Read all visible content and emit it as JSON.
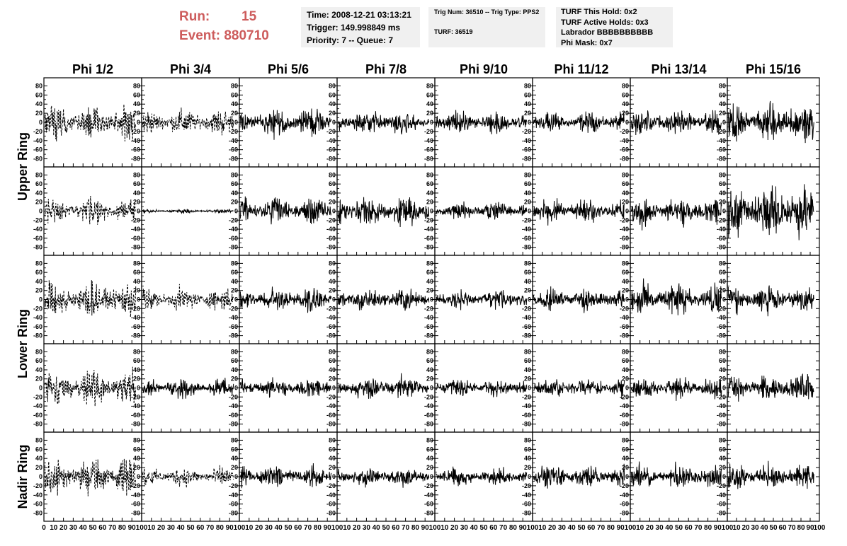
{
  "run_info": {
    "run_label": "Run:",
    "run_value": "15",
    "event_label": "Event:",
    "event_value": "880710"
  },
  "time_box": {
    "time": "Time: 2008-12-21 03:13:21",
    "trigger": "Trigger: 149.998849 ms",
    "priority": "Priority: 7 -- Queue: 7"
  },
  "trig_box": {
    "trig": "Trig Num: 36510 -- Trig Type: PPS2",
    "turf": "TURF: 36519"
  },
  "turf_box": {
    "hold": "TURF This Hold: 0x2",
    "active": "TURF Active Holds: 0x3",
    "labrador": "Labrador BBBBBBBBBB",
    "phimask": "Phi Mask: 0x7"
  },
  "colors": {
    "run_text": "#cd5c5c",
    "info_box_bg": "#f0f0f0",
    "trace": "#000000"
  },
  "chart_data": {
    "type": "line",
    "columns": [
      "Phi 1/2",
      "Phi 3/4",
      "Phi 5/6",
      "Phi 7/8",
      "Phi 9/10",
      "Phi 11/12",
      "Phi 13/14",
      "Phi 15/16"
    ],
    "row_labels": [
      {
        "text": "Upper Ring",
        "rows": [
          0,
          1
        ]
      },
      {
        "text": "Lower Ring",
        "rows": [
          2,
          3
        ]
      },
      {
        "text": "Nadir Ring",
        "rows": [
          4
        ]
      }
    ],
    "ylim": [
      -90,
      90
    ],
    "y_ticks": [
      -80,
      -60,
      -40,
      -20,
      0,
      20,
      40,
      60,
      80
    ],
    "xlim": [
      0,
      100
    ],
    "x_ticks": [
      0,
      10,
      20,
      30,
      40,
      50,
      60,
      70,
      80,
      90,
      100
    ],
    "x_tick_labels": [
      "0",
      "10",
      "20",
      "30",
      "40",
      "50",
      "60",
      "70",
      "80",
      "90",
      "100"
    ],
    "traces": [
      [
        {
          "style": "dashed",
          "amp": 28
        },
        {
          "style": "dashed",
          "amp": 20
        },
        {
          "style": "solid",
          "amp": 22
        },
        {
          "style": "solid",
          "amp": 18
        },
        {
          "style": "solid",
          "amp": 18
        },
        {
          "style": "solid",
          "amp": 16
        },
        {
          "style": "solid",
          "amp": 20
        },
        {
          "style": "solid",
          "amp": 32
        }
      ],
      [
        {
          "style": "dashed",
          "amp": 20
        },
        {
          "style": "solid",
          "amp": 3
        },
        {
          "style": "solid",
          "amp": 22
        },
        {
          "style": "solid",
          "amp": 25
        },
        {
          "style": "solid",
          "amp": 15
        },
        {
          "style": "solid",
          "amp": 20
        },
        {
          "style": "solid",
          "amp": 22
        },
        {
          "style": "solid",
          "amp": 40
        }
      ],
      [
        {
          "style": "dashed",
          "amp": 28
        },
        {
          "style": "dashed",
          "amp": 18
        },
        {
          "style": "solid",
          "amp": 18
        },
        {
          "style": "solid",
          "amp": 18
        },
        {
          "style": "solid",
          "amp": 15
        },
        {
          "style": "solid",
          "amp": 18
        },
        {
          "style": "solid",
          "amp": 25
        },
        {
          "style": "solid",
          "amp": 22
        }
      ],
      [
        {
          "style": "dashed",
          "amp": 28
        },
        {
          "style": "solid",
          "amp": 15
        },
        {
          "style": "solid",
          "amp": 15
        },
        {
          "style": "solid",
          "amp": 18
        },
        {
          "style": "solid",
          "amp": 14
        },
        {
          "style": "solid",
          "amp": 16
        },
        {
          "style": "solid",
          "amp": 18
        },
        {
          "style": "solid",
          "amp": 22
        }
      ],
      [
        {
          "style": "dashed",
          "amp": 30
        },
        {
          "style": "dashed",
          "amp": 15
        },
        {
          "style": "solid",
          "amp": 18
        },
        {
          "style": "solid",
          "amp": 16
        },
        {
          "style": "solid",
          "amp": 14
        },
        {
          "style": "solid",
          "amp": 18
        },
        {
          "style": "solid",
          "amp": 18
        },
        {
          "style": "solid",
          "amp": 20
        }
      ]
    ]
  }
}
